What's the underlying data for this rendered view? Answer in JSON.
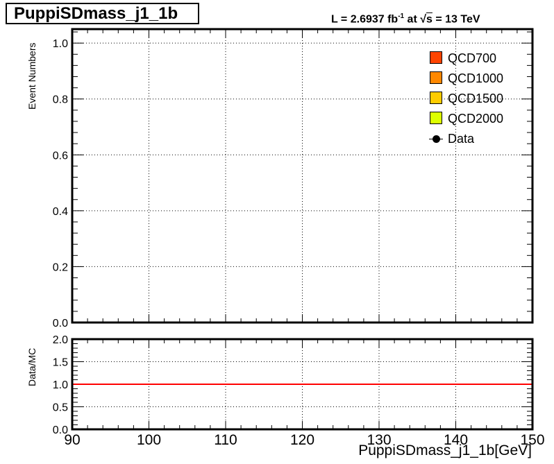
{
  "title": "PuppiSDmass_j1_1b",
  "lumi": {
    "prefix": "L = 2.6937 fb",
    "exponent": "-1",
    "at": " at  ",
    "sqrt_arg": "s",
    "suffix": " = 13 TeV"
  },
  "colors": {
    "QCD700": "#ff4400",
    "QCD1000": "#ff8800",
    "QCD1500": "#ffcc00",
    "QCD2000": "#ddff00",
    "ratio_line": "#ff0000"
  },
  "chart_data": [
    {
      "type": "bar",
      "ylabel": "Event Numbers",
      "xlim": [
        90,
        150
      ],
      "ylim": [
        0,
        1.05
      ],
      "x_ticks": [
        90,
        100,
        110,
        120,
        130,
        140,
        150
      ],
      "y_ticks": [
        0.0,
        0.2,
        0.4,
        0.6,
        0.8,
        1.0
      ],
      "y_tick_labels": [
        "0.0",
        "0.2",
        "0.4",
        "0.6",
        "0.8",
        "1.0"
      ],
      "grid": true,
      "legend_position": "top-right",
      "series": [
        {
          "name": "QCD700",
          "kind": "stacked",
          "values": []
        },
        {
          "name": "QCD1000",
          "kind": "stacked",
          "values": []
        },
        {
          "name": "QCD1500",
          "kind": "stacked",
          "values": []
        },
        {
          "name": "QCD2000",
          "kind": "stacked",
          "values": []
        },
        {
          "name": "Data",
          "kind": "points",
          "values": []
        }
      ]
    },
    {
      "type": "line",
      "ylabel": "Data/MC",
      "xlabel": "PuppiSDmass_j1_1b[GeV]",
      "xlim": [
        90,
        150
      ],
      "ylim": [
        0,
        2
      ],
      "x_ticks": [
        90,
        100,
        110,
        120,
        130,
        140,
        150
      ],
      "x_tick_labels": [
        "90",
        "100",
        "110",
        "120",
        "130",
        "140",
        "150"
      ],
      "y_ticks": [
        0.0,
        0.5,
        1.0,
        1.5,
        2.0
      ],
      "y_tick_labels": [
        "0.0",
        "0.5",
        "1.0",
        "1.5",
        "2.0"
      ],
      "grid": true,
      "reference_line": {
        "y": 1.0
      }
    }
  ]
}
